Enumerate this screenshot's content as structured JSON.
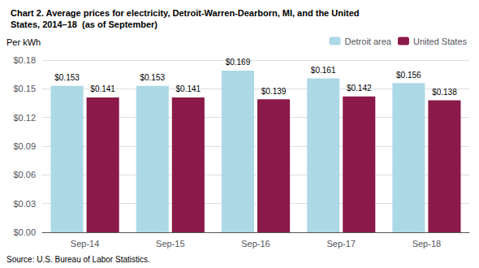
{
  "chart_data": {
    "type": "bar",
    "title": "Chart 2. Average prices for electricity, Detroit-Warren-Dearborn, MI, and the United",
    "subtitle": "States, 2014–18  (as of September)",
    "ylabel": "Per kWh",
    "annotations": [
      "Source: U.S. Bureau of Labor Statistics."
    ],
    "categories": [
      "Sep-14",
      "Sep-15",
      "Sep-16",
      "Sep-17",
      "Sep-18"
    ],
    "series": [
      {
        "name": "Detroit area",
        "color": "#add8e6",
        "values": [
          0.153,
          0.153,
          0.169,
          0.161,
          0.156
        ],
        "value_labels": [
          "$0.153",
          "$0.153",
          "$0.169",
          "$0.161",
          "$0.156"
        ]
      },
      {
        "name": "United States",
        "color": "#8b1a4a",
        "values": [
          0.141,
          0.141,
          0.139,
          0.142,
          0.138
        ],
        "value_labels": [
          "$0.141",
          "$0.141",
          "$0.139",
          "$0.142",
          "$0.138"
        ]
      }
    ],
    "ylim": [
      0,
      0.18
    ],
    "yticks": [
      {
        "value": 0.0,
        "label": "$0.00"
      },
      {
        "value": 0.03,
        "label": "$0.03"
      },
      {
        "value": 0.06,
        "label": "$0.06"
      },
      {
        "value": 0.09,
        "label": "$0.09"
      },
      {
        "value": 0.12,
        "label": "$0.12"
      },
      {
        "value": 0.15,
        "label": "$0.15"
      },
      {
        "value": 0.18,
        "label": "$0.18"
      }
    ],
    "grid": true,
    "legend": "top-right",
    "data_labels": true
  }
}
